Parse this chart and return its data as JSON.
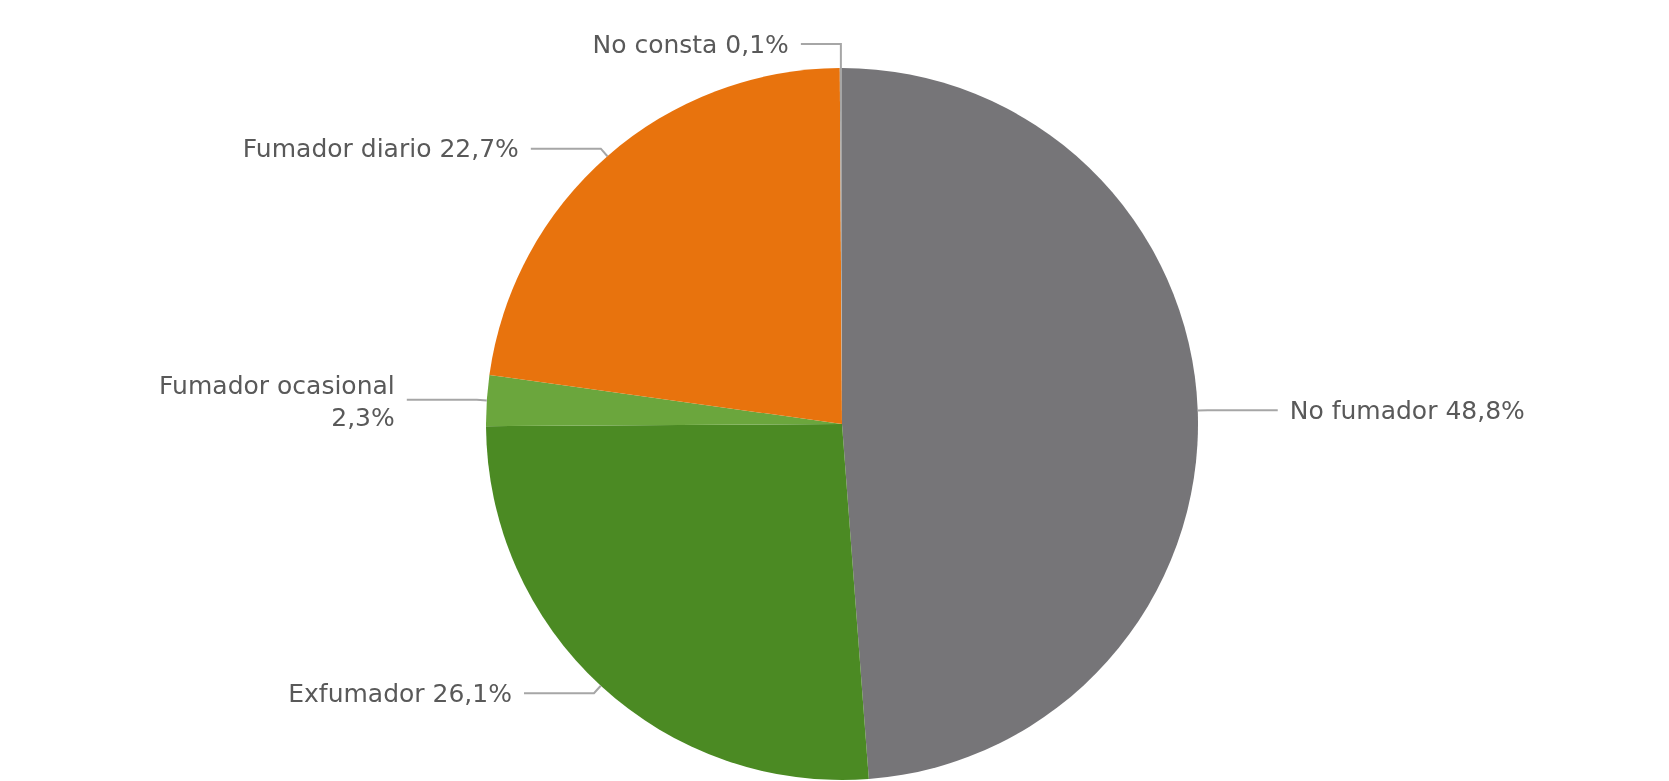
{
  "chart_data": {
    "type": "pie",
    "categories": [
      "No fumador",
      "Exfumador",
      "Fumador ocasional",
      "Fumador diario",
      "No consta"
    ],
    "values": [
      48.8,
      26.1,
      2.3,
      22.7,
      0.1
    ],
    "colors": [
      "#767578",
      "#4b8a23",
      "#6ba63d",
      "#e8730d",
      "#a5a5a5"
    ],
    "value_labels": [
      "48,8%",
      "26,1%",
      "2,3%",
      "22,7%",
      "0,1%"
    ]
  }
}
